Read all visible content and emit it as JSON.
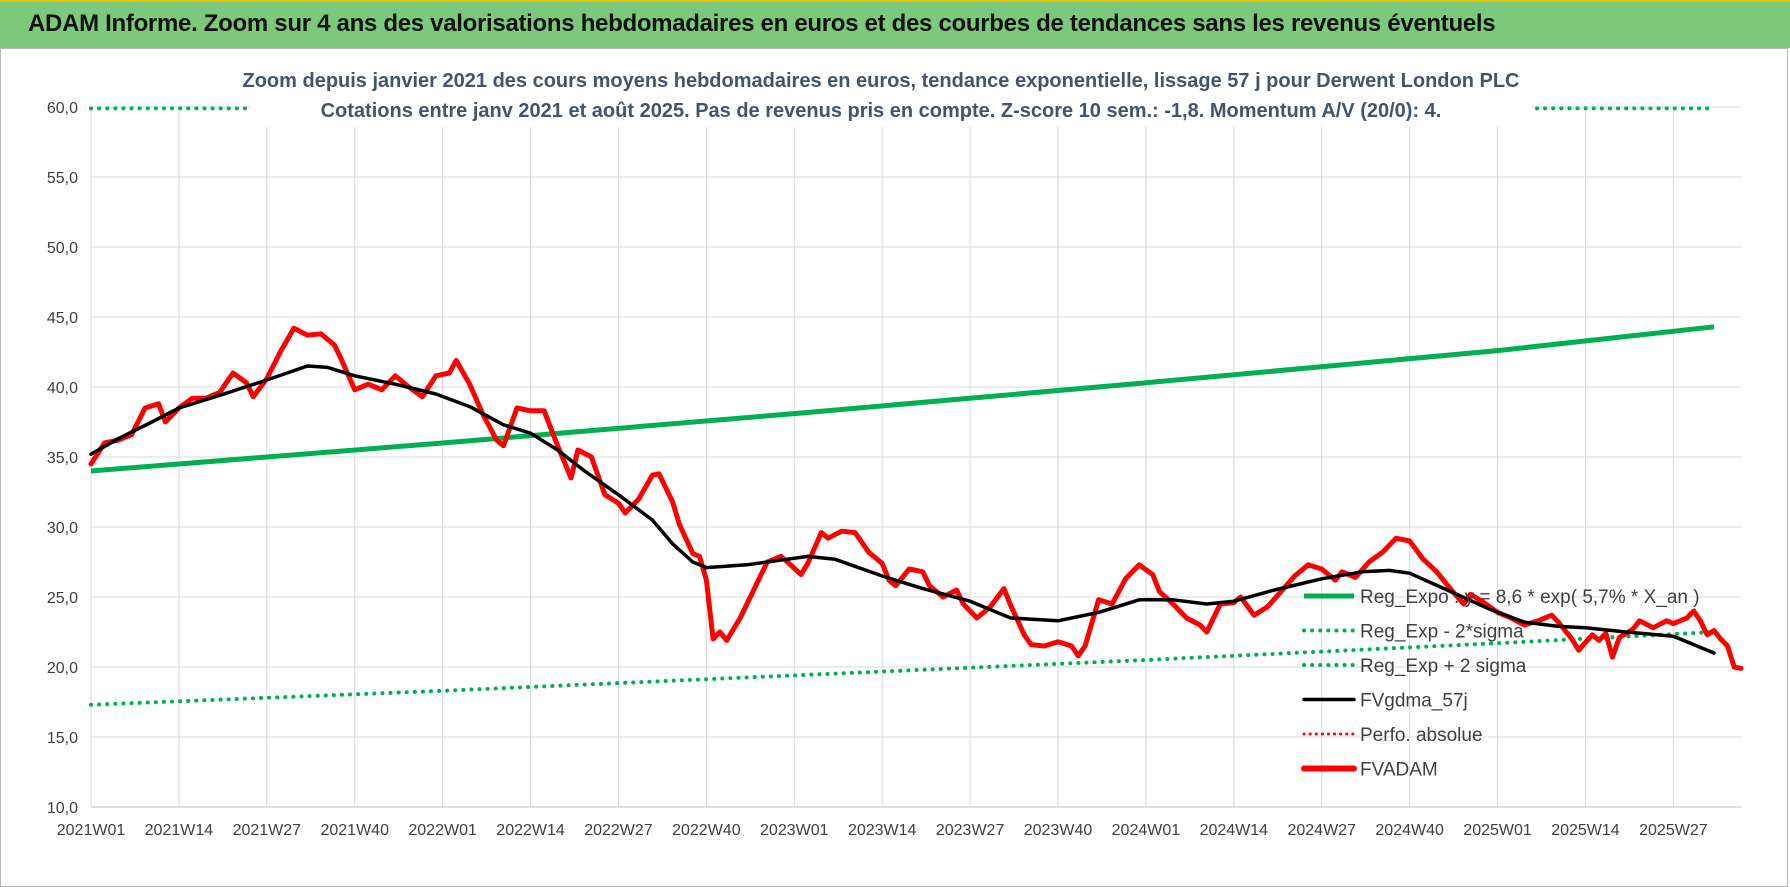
{
  "page": {
    "banner_title": "ADAM Informe. Zoom sur 4 ans des valorisations hebdomadaires en euros et des courbes de tendances sans les revenus éventuels"
  },
  "colors": {
    "banner_bg": "#7dc97b",
    "regression": "#00b050",
    "smoothed": "#000000",
    "price": "#ff0000",
    "axis_text": "#404040",
    "title_text": "#44546a"
  },
  "chart_data": {
    "type": "line",
    "title": "Zoom depuis janvier 2021 des cours moyens hebdomadaires en euros, tendance exponentielle, lissage 57 j pour Derwent London PLC",
    "subtitle": "Cotations entre janv 2021 et août 2025.  Pas de revenus pris en compte. Z-score 10 sem.: -1,8. Momentum A/V (20/0): 4.",
    "xlabel": "",
    "ylabel": "",
    "ylim": [
      10,
      60
    ],
    "y_ticks": [
      "10,0",
      "15,0",
      "20,0",
      "25,0",
      "30,0",
      "35,0",
      "40,0",
      "45,0",
      "50,0",
      "55,0",
      "60,0"
    ],
    "x_ticks": [
      "2021W01",
      "2021W14",
      "2021W27",
      "2021W40",
      "2022W01",
      "2022W14",
      "2022W27",
      "2022W40",
      "2023W01",
      "2023W14",
      "2023W27",
      "2023W40",
      "2024W01",
      "2024W14",
      "2024W27",
      "2024W40",
      "2025W01",
      "2025W14",
      "2025W27"
    ],
    "grid": true,
    "legend_position": "bottom-right",
    "series": [
      {
        "name": "Reg_Expo : y = 8,6 * exp( 5,7% *  X_an )",
        "style": "solid",
        "points": [
          [
            "2021W01",
            34.0
          ],
          [
            "2022W01",
            36.0
          ],
          [
            "2023W01",
            38.1
          ],
          [
            "2024W01",
            40.3
          ],
          [
            "2025W01",
            42.6
          ],
          [
            "2025W33",
            44.3
          ]
        ]
      },
      {
        "name": "Reg_Exp - 2*sigma",
        "style": "dotted",
        "points": [
          [
            "2021W01",
            17.3
          ],
          [
            "2022W01",
            18.3
          ],
          [
            "2023W01",
            19.4
          ],
          [
            "2024W01",
            20.5
          ],
          [
            "2025W01",
            21.7
          ],
          [
            "2025W33",
            22.5
          ]
        ]
      },
      {
        "name": "Reg_Exp + 2 sigma",
        "style": "dotted",
        "points": [
          [
            "2021W01",
            59.9
          ],
          [
            "2022W01",
            59.9
          ],
          [
            "2023W01",
            59.9
          ],
          [
            "2024W01",
            59.9
          ],
          [
            "2025W01",
            59.9
          ],
          [
            "2025W33",
            59.9
          ]
        ]
      },
      {
        "name": "FVgdma_57j",
        "style": "solid",
        "points": [
          [
            "2021W01",
            35.2
          ],
          [
            "2021W05",
            36.3
          ],
          [
            "2021W10",
            37.5
          ],
          [
            "2021W14",
            38.5
          ],
          [
            "2021W20",
            39.4
          ],
          [
            "2021W27",
            40.5
          ],
          [
            "2021W33",
            41.5
          ],
          [
            "2021W36",
            41.4
          ],
          [
            "2021W40",
            40.8
          ],
          [
            "2021W46",
            40.2
          ],
          [
            "2021W52",
            39.5
          ],
          [
            "2022W05",
            38.6
          ],
          [
            "2022W10",
            37.3
          ],
          [
            "2022W14",
            36.7
          ],
          [
            "2022W18",
            35.5
          ],
          [
            "2022W22",
            34.0
          ],
          [
            "2022W27",
            32.3
          ],
          [
            "2022W32",
            30.5
          ],
          [
            "2022W35",
            28.8
          ],
          [
            "2022W38",
            27.5
          ],
          [
            "2022W40",
            27.1
          ],
          [
            "2022W46",
            27.3
          ],
          [
            "2022W52",
            27.7
          ],
          [
            "2023W03",
            27.9
          ],
          [
            "2023W07",
            27.7
          ],
          [
            "2023W14",
            26.5
          ],
          [
            "2023W20",
            25.6
          ],
          [
            "2023W27",
            24.7
          ],
          [
            "2023W33",
            23.5
          ],
          [
            "2023W40",
            23.3
          ],
          [
            "2023W46",
            23.9
          ],
          [
            "2023W52",
            24.8
          ],
          [
            "2024W05",
            24.8
          ],
          [
            "2024W10",
            24.5
          ],
          [
            "2024W14",
            24.7
          ],
          [
            "2024W20",
            25.5
          ],
          [
            "2024W27",
            26.3
          ],
          [
            "2024W33",
            26.8
          ],
          [
            "2024W37",
            26.9
          ],
          [
            "2024W40",
            26.7
          ],
          [
            "2024W46",
            25.4
          ],
          [
            "2024W52",
            24.1
          ],
          [
            "2025W05",
            23.2
          ],
          [
            "2025W10",
            22.9
          ],
          [
            "2025W14",
            22.8
          ],
          [
            "2025W20",
            22.5
          ],
          [
            "2025W27",
            22.2
          ],
          [
            "2025W33",
            21.0
          ]
        ]
      },
      {
        "name": "Perfo. absolue",
        "style": "dotted",
        "points": []
      },
      {
        "name": "FVADAM",
        "style": "solid",
        "points": [
          [
            "2021W01",
            34.5
          ],
          [
            "2021W03",
            36.0
          ],
          [
            "2021W05",
            36.2
          ],
          [
            "2021W07",
            36.6
          ],
          [
            "2021W09",
            38.5
          ],
          [
            "2021W11",
            38.8
          ],
          [
            "2021W12",
            37.5
          ],
          [
            "2021W14",
            38.5
          ],
          [
            "2021W16",
            39.2
          ],
          [
            "2021W18",
            39.2
          ],
          [
            "2021W20",
            39.6
          ],
          [
            "2021W22",
            41.0
          ],
          [
            "2021W24",
            40.3
          ],
          [
            "2021W25",
            39.3
          ],
          [
            "2021W27",
            40.6
          ],
          [
            "2021W29",
            42.5
          ],
          [
            "2021W31",
            44.2
          ],
          [
            "2021W33",
            43.7
          ],
          [
            "2021W35",
            43.8
          ],
          [
            "2021W37",
            43.0
          ],
          [
            "2021W38",
            42.0
          ],
          [
            "2021W40",
            39.8
          ],
          [
            "2021W42",
            40.2
          ],
          [
            "2021W44",
            39.8
          ],
          [
            "2021W46",
            40.8
          ],
          [
            "2021W48",
            40.0
          ],
          [
            "2021W50",
            39.3
          ],
          [
            "2021W52",
            40.8
          ],
          [
            "2022W02",
            41.0
          ],
          [
            "2022W03",
            41.9
          ],
          [
            "2022W05",
            40.2
          ],
          [
            "2022W07",
            38.0
          ],
          [
            "2022W09",
            36.2
          ],
          [
            "2022W10",
            35.8
          ],
          [
            "2022W12",
            38.5
          ],
          [
            "2022W14",
            38.3
          ],
          [
            "2022W16",
            38.3
          ],
          [
            "2022W18",
            35.8
          ],
          [
            "2022W20",
            33.5
          ],
          [
            "2022W21",
            35.5
          ],
          [
            "2022W23",
            35.0
          ],
          [
            "2022W25",
            32.3
          ],
          [
            "2022W27",
            31.7
          ],
          [
            "2022W28",
            31.0
          ],
          [
            "2022W30",
            32.0
          ],
          [
            "2022W32",
            33.7
          ],
          [
            "2022W33",
            33.8
          ],
          [
            "2022W35",
            31.8
          ],
          [
            "2022W36",
            30.2
          ],
          [
            "2022W38",
            28.1
          ],
          [
            "2022W39",
            27.9
          ],
          [
            "2022W40",
            26.2
          ],
          [
            "2022W41",
            22.0
          ],
          [
            "2022W42",
            22.5
          ],
          [
            "2022W43",
            21.9
          ],
          [
            "2022W45",
            23.5
          ],
          [
            "2022W47",
            25.5
          ],
          [
            "2022W49",
            27.5
          ],
          [
            "2022W51",
            27.9
          ],
          [
            "2022W52",
            27.5
          ],
          [
            "2023W02",
            26.6
          ],
          [
            "2023W03",
            27.4
          ],
          [
            "2023W05",
            29.6
          ],
          [
            "2023W06",
            29.2
          ],
          [
            "2023W08",
            29.7
          ],
          [
            "2023W10",
            29.6
          ],
          [
            "2023W12",
            28.2
          ],
          [
            "2023W14",
            27.4
          ],
          [
            "2023W15",
            26.2
          ],
          [
            "2023W16",
            25.8
          ],
          [
            "2023W18",
            27.0
          ],
          [
            "2023W20",
            26.8
          ],
          [
            "2023W21",
            25.8
          ],
          [
            "2023W23",
            25.0
          ],
          [
            "2023W25",
            25.5
          ],
          [
            "2023W26",
            24.5
          ],
          [
            "2023W28",
            23.5
          ],
          [
            "2023W30",
            24.3
          ],
          [
            "2023W32",
            25.6
          ],
          [
            "2023W33",
            24.4
          ],
          [
            "2023W35",
            22.3
          ],
          [
            "2023W36",
            21.6
          ],
          [
            "2023W38",
            21.5
          ],
          [
            "2023W40",
            21.8
          ],
          [
            "2023W42",
            21.5
          ],
          [
            "2023W43",
            20.8
          ],
          [
            "2023W44",
            21.5
          ],
          [
            "2023W46",
            24.8
          ],
          [
            "2023W48",
            24.5
          ],
          [
            "2023W50",
            26.3
          ],
          [
            "2023W52",
            27.3
          ],
          [
            "2024W02",
            26.6
          ],
          [
            "2024W03",
            25.4
          ],
          [
            "2024W05",
            24.5
          ],
          [
            "2024W07",
            23.5
          ],
          [
            "2024W09",
            23.0
          ],
          [
            "2024W10",
            22.5
          ],
          [
            "2024W12",
            24.5
          ],
          [
            "2024W14",
            24.6
          ],
          [
            "2024W15",
            25.0
          ],
          [
            "2024W17",
            23.7
          ],
          [
            "2024W19",
            24.3
          ],
          [
            "2024W21",
            25.4
          ],
          [
            "2024W23",
            26.5
          ],
          [
            "2024W25",
            27.3
          ],
          [
            "2024W27",
            27.0
          ],
          [
            "2024W29",
            26.2
          ],
          [
            "2024W30",
            26.8
          ],
          [
            "2024W32",
            26.4
          ],
          [
            "2024W34",
            27.5
          ],
          [
            "2024W36",
            28.2
          ],
          [
            "2024W38",
            29.2
          ],
          [
            "2024W40",
            29.0
          ],
          [
            "2024W42",
            27.7
          ],
          [
            "2024W44",
            26.8
          ],
          [
            "2024W46",
            25.6
          ],
          [
            "2024W48",
            24.5
          ],
          [
            "2024W49",
            25.2
          ],
          [
            "2024W51",
            24.6
          ],
          [
            "2025W01",
            23.9
          ],
          [
            "2025W03",
            23.5
          ],
          [
            "2025W05",
            23.0
          ],
          [
            "2025W07",
            23.3
          ],
          [
            "2025W09",
            23.7
          ],
          [
            "2025W10",
            23.2
          ],
          [
            "2025W12",
            22.0
          ],
          [
            "2025W13",
            21.2
          ],
          [
            "2025W15",
            22.3
          ],
          [
            "2025W16",
            21.9
          ],
          [
            "2025W17",
            22.4
          ],
          [
            "2025W18",
            20.7
          ],
          [
            "2025W19",
            22.1
          ],
          [
            "2025W21",
            22.7
          ],
          [
            "2025W22",
            23.3
          ],
          [
            "2025W24",
            22.8
          ],
          [
            "2025W26",
            23.3
          ],
          [
            "2025W27",
            23.1
          ],
          [
            "2025W29",
            23.5
          ],
          [
            "2025W30",
            24.0
          ],
          [
            "2025W31",
            23.3
          ],
          [
            "2025W32",
            22.3
          ],
          [
            "2025W33",
            22.6
          ],
          [
            "2025W34",
            22.0
          ],
          [
            "2025W35",
            21.5
          ],
          [
            "2025W36",
            20.0
          ],
          [
            "2025W37",
            19.9
          ]
        ]
      }
    ]
  }
}
